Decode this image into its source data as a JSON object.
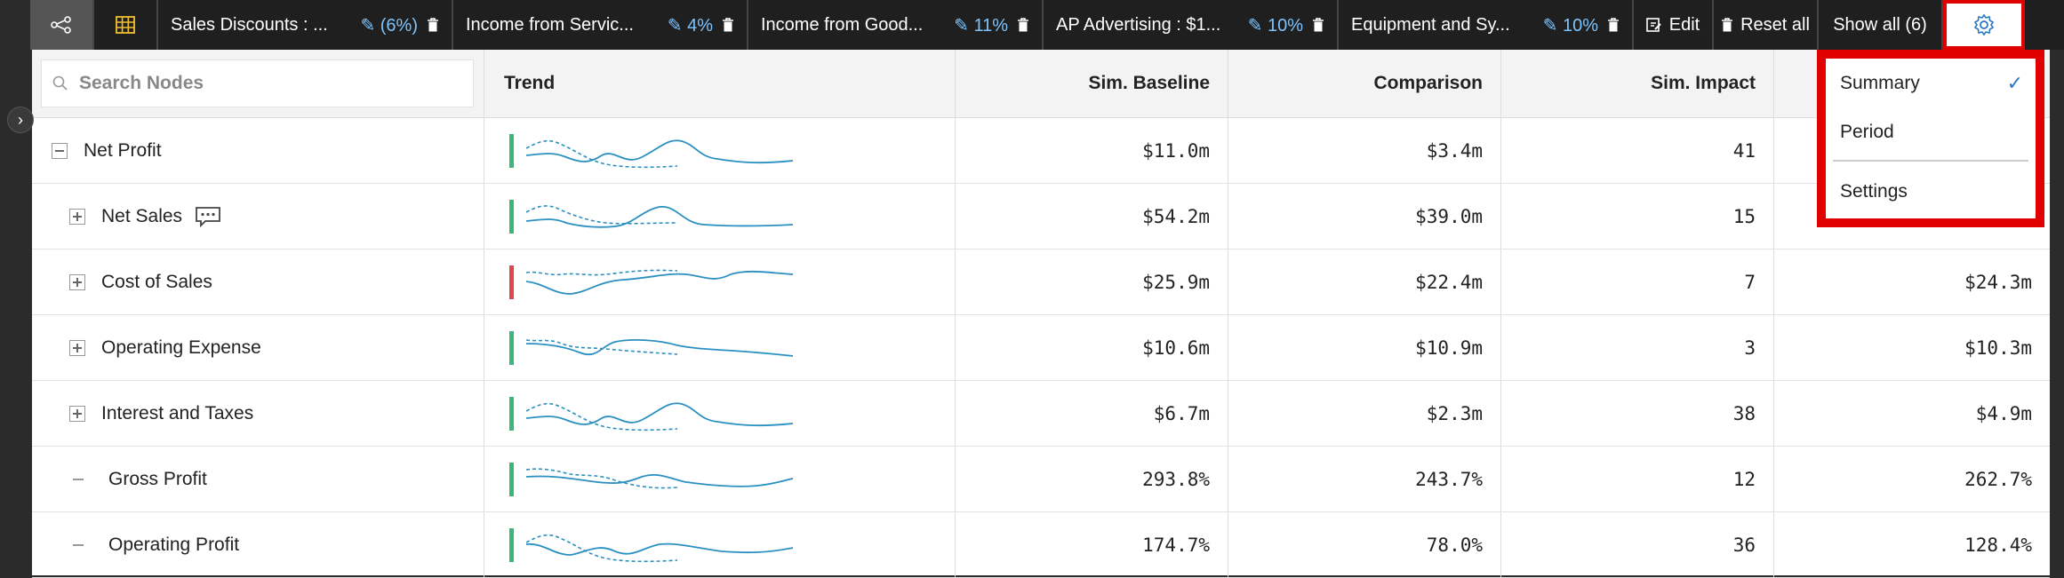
{
  "toolbar": {
    "chips": [
      {
        "label": "Sales Discounts : ...",
        "pct": "(6%)"
      },
      {
        "label": "Income from Servic...",
        "pct": "4%"
      },
      {
        "label": "Income from Good...",
        "pct": "11%"
      },
      {
        "label": "AP Advertising : $1...",
        "pct": "10%"
      },
      {
        "label": "Equipment and Sy...",
        "pct": "10%"
      }
    ],
    "edit_label": "Edit",
    "reset_label": "Reset all",
    "show_all_label": "Show all (6)"
  },
  "search": {
    "placeholder": "Search Nodes"
  },
  "columns": {
    "trend": "Trend",
    "baseline": "Sim. Baseline",
    "comparison": "Comparison",
    "impact": "Sim. Impact"
  },
  "rows": [
    {
      "name": "Net Profit",
      "baseline": "$11.0m",
      "comparison": "$3.4m",
      "impact": "41",
      "last": "",
      "status": "good"
    },
    {
      "name": "Net Sales",
      "baseline": "$54.2m",
      "comparison": "$39.0m",
      "impact": "15",
      "last": "",
      "status": "good"
    },
    {
      "name": "Cost of Sales",
      "baseline": "$25.9m",
      "comparison": "$22.4m",
      "impact": "7",
      "last": "$24.3m",
      "status": "bad"
    },
    {
      "name": "Operating Expense",
      "baseline": "$10.6m",
      "comparison": "$10.9m",
      "impact": "3",
      "last": "$10.3m",
      "status": "good"
    },
    {
      "name": "Interest and Taxes",
      "baseline": "$6.7m",
      "comparison": "$2.3m",
      "impact": "38",
      "last": "$4.9m",
      "status": "good"
    },
    {
      "name": "Gross Profit",
      "baseline": "293.8%",
      "comparison": "243.7%",
      "impact": "12",
      "last": "262.7%",
      "status": "good"
    },
    {
      "name": "Operating Profit",
      "baseline": "174.7%",
      "comparison": "78.0%",
      "impact": "36",
      "last": "128.4%",
      "status": "good"
    }
  ],
  "dropdown": {
    "summary": "Summary",
    "period": "Period",
    "settings": "Settings"
  },
  "colors": {
    "good": "#3db67a",
    "bad": "#e0464c",
    "line": "#2a8fc1"
  }
}
